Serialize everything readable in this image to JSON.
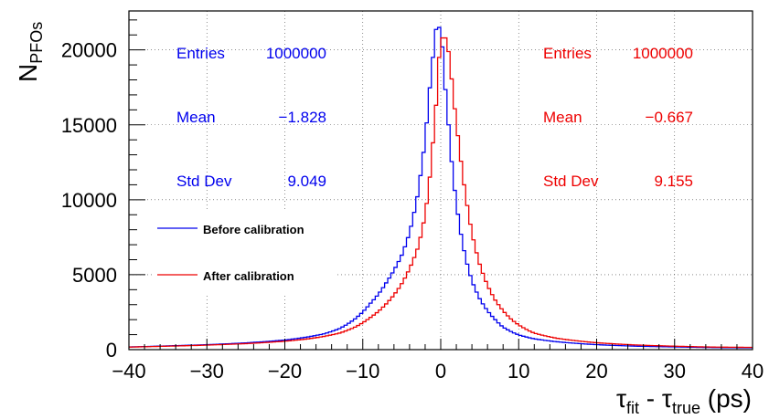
{
  "chart_data": {
    "type": "histogram-step",
    "xlabel": "τ_fit - τ_true (ps)",
    "xlabel_parts": {
      "tau1": "τ",
      "sub1": "fit",
      "dash": " - ",
      "tau2": "τ",
      "sub2": "true",
      "unit": " (ps)"
    },
    "ylabel_parts": {
      "main": "N",
      "sub": "PFOs"
    },
    "xlim": [
      -40,
      40
    ],
    "ylim": [
      0,
      22600
    ],
    "xticks": [
      -40,
      -30,
      -20,
      -10,
      0,
      10,
      20,
      30,
      40
    ],
    "yticks": [
      0,
      5000,
      10000,
      15000,
      20000
    ],
    "grid": true,
    "series": [
      {
        "name": "Before calibration",
        "color": "#0000ee",
        "stats": {
          "entries_label": "Entries",
          "entries": "1000000",
          "mean_label": "Mean",
          "mean": "−1.828",
          "std_label": "Std Dev",
          "std": "9.049"
        },
        "points": [
          [
            -40,
            180
          ],
          [
            -35,
            250
          ],
          [
            -30,
            330
          ],
          [
            -25,
            450
          ],
          [
            -20,
            640
          ],
          [
            -17,
            850
          ],
          [
            -15,
            1050
          ],
          [
            -13,
            1400
          ],
          [
            -11,
            2050
          ],
          [
            -9,
            3100
          ],
          [
            -8,
            3700
          ],
          [
            -7,
            4450
          ],
          [
            -6,
            5300
          ],
          [
            -5,
            6300
          ],
          [
            -4,
            7800
          ],
          [
            -3,
            10200
          ],
          [
            -2.5,
            12000
          ],
          [
            -2,
            14000
          ],
          [
            -1.5,
            17000
          ],
          [
            -1,
            19500
          ],
          [
            -0.7,
            21200
          ],
          [
            -0.4,
            21700
          ],
          [
            -0.1,
            21400
          ],
          [
            0.2,
            20200
          ],
          [
            0.5,
            18000
          ],
          [
            1,
            15000
          ],
          [
            1.5,
            12000
          ],
          [
            2,
            9800
          ],
          [
            2.5,
            8000
          ],
          [
            3,
            6600
          ],
          [
            3.5,
            5500
          ],
          [
            4,
            4600
          ],
          [
            5,
            3400
          ],
          [
            6,
            2600
          ],
          [
            7,
            2000
          ],
          [
            8,
            1500
          ],
          [
            10,
            980
          ],
          [
            12,
            720
          ],
          [
            15,
            520
          ],
          [
            20,
            330
          ],
          [
            25,
            230
          ],
          [
            30,
            180
          ],
          [
            35,
            140
          ],
          [
            40,
            120
          ]
        ]
      },
      {
        "name": "After calibration",
        "color": "#ee0000",
        "stats": {
          "entries_label": "Entries",
          "entries": "1000000",
          "mean_label": "Mean",
          "mean": "−0.667",
          "std_label": "Std Dev",
          "std": "9.155"
        },
        "points": [
          [
            -40,
            170
          ],
          [
            -35,
            230
          ],
          [
            -30,
            300
          ],
          [
            -25,
            400
          ],
          [
            -20,
            560
          ],
          [
            -17,
            720
          ],
          [
            -15,
            880
          ],
          [
            -13,
            1100
          ],
          [
            -11,
            1500
          ],
          [
            -9,
            2150
          ],
          [
            -8,
            2550
          ],
          [
            -7,
            3050
          ],
          [
            -6,
            3650
          ],
          [
            -5,
            4400
          ],
          [
            -4,
            5400
          ],
          [
            -3,
            6700
          ],
          [
            -2.5,
            7700
          ],
          [
            -2,
            9000
          ],
          [
            -1.5,
            11000
          ],
          [
            -1,
            13800
          ],
          [
            -0.5,
            17000
          ],
          [
            -0.2,
            19500
          ],
          [
            0.1,
            20700
          ],
          [
            0.4,
            21000
          ],
          [
            0.8,
            20600
          ],
          [
            1.2,
            19200
          ],
          [
            1.6,
            17000
          ],
          [
            2,
            15200
          ],
          [
            2.5,
            13000
          ],
          [
            3,
            11000
          ],
          [
            3.5,
            9300
          ],
          [
            4,
            7800
          ],
          [
            5,
            5700
          ],
          [
            6,
            4300
          ],
          [
            7,
            3300
          ],
          [
            8,
            2600
          ],
          [
            9,
            2050
          ],
          [
            10,
            1650
          ],
          [
            12,
            1100
          ],
          [
            15,
            750
          ],
          [
            20,
            460
          ],
          [
            25,
            310
          ],
          [
            30,
            230
          ],
          [
            35,
            170
          ],
          [
            40,
            150
          ]
        ]
      }
    ]
  }
}
